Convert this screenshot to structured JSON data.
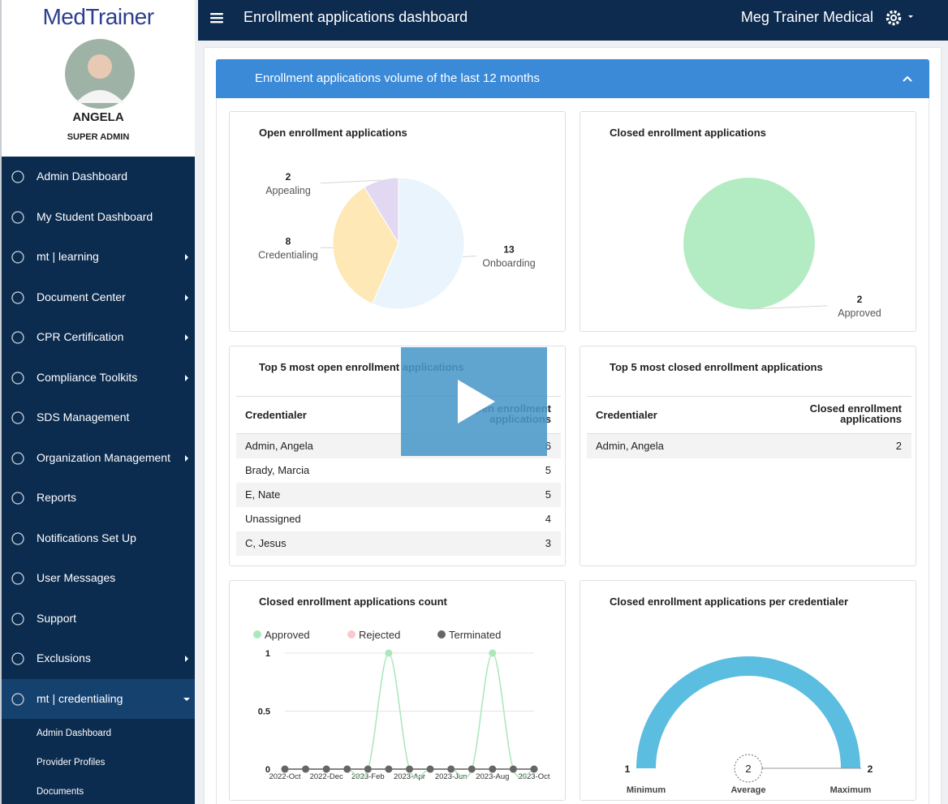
{
  "sidebar": {
    "brand": "MedTrainer",
    "user_name": "ANGELA",
    "user_role": "SUPER ADMIN",
    "nav": [
      {
        "label": "Admin Dashboard"
      },
      {
        "label": "My Student Dashboard"
      },
      {
        "label": "mt | learning",
        "submenu": true
      },
      {
        "label": "Document Center",
        "submenu": true
      },
      {
        "label": "CPR Certification",
        "submenu": true
      },
      {
        "label": "Compliance Toolkits",
        "submenu": true
      },
      {
        "label": "SDS Management"
      },
      {
        "label": "Organization Management",
        "submenu": true
      },
      {
        "label": "Reports"
      },
      {
        "label": "Notifications Set Up"
      },
      {
        "label": "User Messages"
      },
      {
        "label": "Support"
      },
      {
        "label": "Exclusions",
        "submenu": true
      },
      {
        "label": "mt | credentialing",
        "submenu": true,
        "active": true
      }
    ],
    "subnav": [
      "Admin Dashboard",
      "Provider Profiles",
      "Documents"
    ]
  },
  "header": {
    "title": "Enrollment applications dashboard",
    "organization": "Meg Trainer Medical"
  },
  "panel_title": "Enrollment applications volume of the last 12 months",
  "chart_data": [
    {
      "type": "pie",
      "title": "Open enrollment applications",
      "categories": [
        "Onboarding",
        "Credentialing",
        "Appealing"
      ],
      "values": [
        13,
        8,
        2
      ],
      "colors": [
        "#eaf4fc",
        "#fde8b6",
        "#e3d8f2"
      ]
    },
    {
      "type": "pie",
      "title": "Closed enrollment applications",
      "categories": [
        "Approved"
      ],
      "values": [
        2
      ],
      "colors": [
        "#b3ecc3"
      ]
    },
    {
      "type": "line",
      "title": "Closed enrollment applications count",
      "categories": [
        "2022-Oct",
        null,
        "2022-Dec",
        null,
        "2023-Feb",
        null,
        "2023-Apr",
        null,
        "2023-Jun",
        null,
        "2023-Aug",
        null,
        "2023-Oct"
      ],
      "series": [
        {
          "name": "Approved",
          "color": "#ade8bb",
          "values": [
            0,
            0,
            0,
            0,
            0,
            1,
            0,
            0,
            0,
            0,
            1,
            0,
            0
          ]
        },
        {
          "name": "Rejected",
          "color": "#f8c9cd",
          "values": [
            0,
            0,
            0,
            0,
            0,
            0,
            0,
            0,
            0,
            0,
            0,
            0,
            0
          ]
        },
        {
          "name": "Terminated",
          "color": "#666666",
          "values": [
            0,
            0,
            0,
            0,
            0,
            0,
            0,
            0,
            0,
            0,
            0,
            0,
            0
          ]
        }
      ],
      "ylim": [
        0,
        1
      ],
      "yticks": [
        0,
        0.5,
        1
      ],
      "grid": true
    },
    {
      "type": "gauge",
      "title": "Closed enrollment applications per credentialer",
      "min": 1,
      "average": 2,
      "max": 2,
      "min_label": "Minimum",
      "average_label": "Average",
      "max_label": "Maximum",
      "color": "#5bbde0"
    }
  ],
  "tables": [
    {
      "title": "Top 5 most open enrollment applications",
      "columns": [
        "Credentialer",
        "Open enrollment applications"
      ],
      "rows": [
        [
          "Admin, Angela",
          6
        ],
        [
          "Brady, Marcia",
          5
        ],
        [
          "E, Nate",
          5
        ],
        [
          "Unassigned",
          4
        ],
        [
          "C, Jesus",
          3
        ]
      ]
    },
    {
      "title": "Top 5 most closed enrollment applications",
      "columns": [
        "Credentialer",
        "Closed enrollment applications"
      ],
      "rows": [
        [
          "Admin, Angela",
          2
        ]
      ]
    }
  ]
}
